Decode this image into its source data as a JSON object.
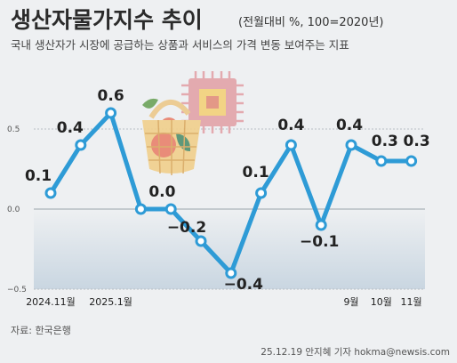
{
  "title": "생산자물가지수 추이",
  "unit_note": "(전월대비 %, 100=2020년)",
  "subtitle": "국내 생산자가 시장에 공급하는 상품과 서비스의 가격 변동 보여주는 지표",
  "source": "자료: 한국은행",
  "credit": "25.12.19 안지혜 기자 hokma@newsis.com",
  "colors": {
    "line": "#2e9bd6",
    "background": "#eef0f2",
    "area_bottom": "#c9d6e1"
  },
  "chart_data": {
    "type": "line",
    "x": [
      "2024.11",
      "2024.12",
      "2025.1",
      "2025.2",
      "2025.3",
      "2025.4",
      "2025.5",
      "2025.6",
      "2025.7",
      "2025.8",
      "2025.9",
      "2025.10",
      "2025.11"
    ],
    "values": [
      0.1,
      0.4,
      0.6,
      0.0,
      0.0,
      -0.2,
      -0.4,
      0.1,
      0.4,
      -0.1,
      0.4,
      0.3,
      0.3
    ],
    "data_labels": [
      "0.1",
      "0.4",
      "0.6",
      "0.0",
      "",
      "−0.2",
      "−0.4",
      "0.1",
      "0.4",
      "−0.1",
      "0.4",
      "0.3",
      "0.3"
    ],
    "x_tick_labels": [
      {
        "index": 0,
        "label": "2024.11월"
      },
      {
        "index": 2,
        "label": "2025.1월"
      },
      {
        "index": 10,
        "label": "9월"
      },
      {
        "index": 11,
        "label": "10월"
      },
      {
        "index": 12,
        "label": "11월"
      }
    ],
    "yticks": [
      "0.5",
      "0.0",
      "−0.5"
    ],
    "ytick_values": [
      0.5,
      0.0,
      -0.5
    ],
    "ylim": [
      -0.5,
      0.5
    ],
    "grid": true,
    "legend": "none"
  }
}
